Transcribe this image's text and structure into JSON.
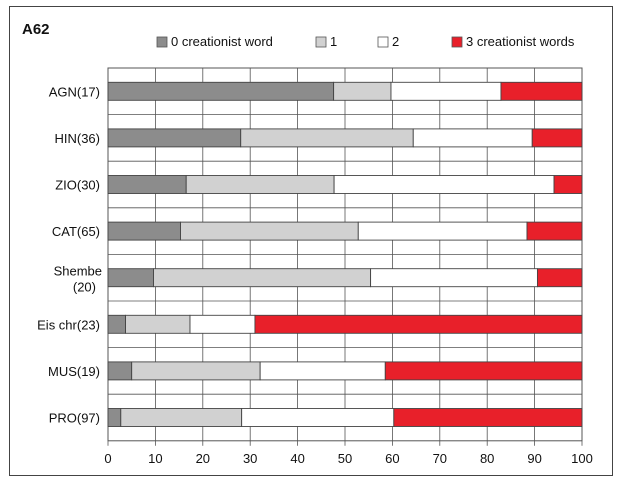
{
  "chart_data": {
    "type": "bar",
    "orientation": "horizontal",
    "stacked": true,
    "percent_axis": true,
    "title": "A62",
    "categories": [
      "AGN(17)",
      "HIN(36)",
      "ZIO(30)",
      "CAT(65)",
      "Shembe (20)",
      "Eis chr(23)",
      "MUS(19)",
      "PRO(97)"
    ],
    "category_lines": [
      [
        "AGN(17)"
      ],
      [
        "HIN(36)"
      ],
      [
        "ZIO(30)"
      ],
      [
        "CAT(65)"
      ],
      [
        "Shembe",
        "(20)"
      ],
      [
        "Eis chr(23)"
      ],
      [
        "MUS(19)"
      ],
      [
        "PRO(97)"
      ]
    ],
    "series": [
      {
        "name": "0 creationist word",
        "color": "#8c8c8c",
        "values": [
          47.6,
          28.0,
          16.5,
          15.3,
          9.6,
          3.7,
          5.0,
          2.7
        ]
      },
      {
        "name": "1",
        "color": "#d1d1d1",
        "values": [
          12.1,
          36.4,
          31.2,
          37.5,
          45.8,
          13.6,
          27.1,
          25.5
        ]
      },
      {
        "name": "2",
        "color": "#ffffff",
        "values": [
          23.2,
          25.1,
          46.4,
          35.6,
          35.2,
          13.7,
          26.4,
          32.1
        ]
      },
      {
        "name": "3 creationist words",
        "color": "#e8202a",
        "values": [
          17.1,
          10.5,
          5.9,
          11.6,
          9.4,
          69.0,
          41.5,
          39.7
        ]
      }
    ],
    "xlim": [
      0,
      100
    ],
    "xticks": [
      0,
      10,
      20,
      30,
      40,
      50,
      60,
      70,
      80,
      90,
      100
    ],
    "grid": true,
    "legend_position": "top"
  }
}
